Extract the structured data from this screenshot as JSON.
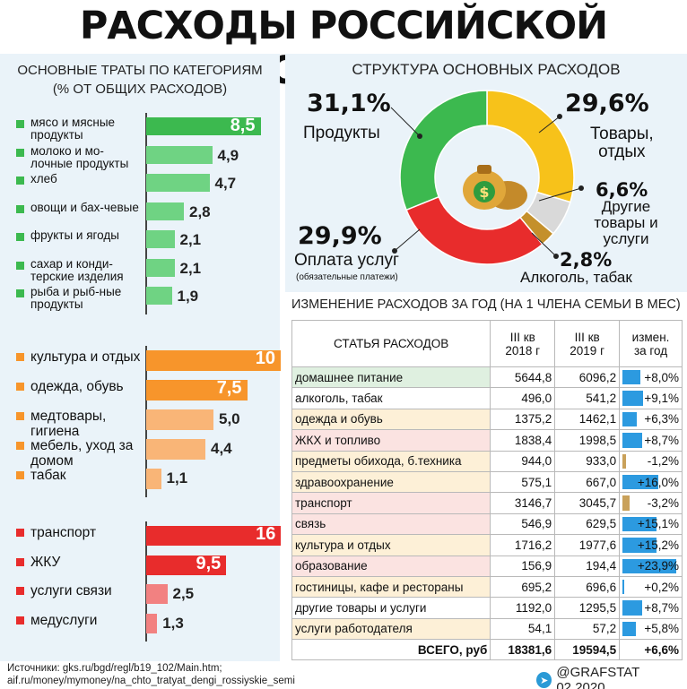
{
  "title": "РАСХОДЫ РОССИЙСКОЙ СЕМЬИ",
  "left": {
    "heading_line1": "ОСНОВНЫЕ ТРАТЫ ПО КАТЕГОРИЯМ",
    "heading_line2": "(% ОТ ОБЩИХ РАСХОДОВ)"
  },
  "pie": {
    "heading": "СТРУКТУРА ОСНОВНЫХ РАСХОДОВ",
    "prod_pct": "31,1%",
    "prod_lbl": "Продукты",
    "goods_pct": "29,6%",
    "goods_lbl1": "Товары,",
    "goods_lbl2": "отдых",
    "other_pct": "6,6%",
    "other_lbl1": "Другие",
    "other_lbl2": "товары и",
    "other_lbl3": "услуги",
    "alc_pct": "2,8%",
    "alc_lbl": "Алкоголь, табак",
    "serv_pct": "29,9%",
    "serv_lbl": "Оплата услуг",
    "serv_note": "(обязательные платежи)"
  },
  "table": {
    "heading": "ИЗМЕНЕНИЕ РАСХОДОВ ЗА ГОД (НА 1 ЧЛЕНА СЕМЬИ В МЕС)",
    "h_item": "СТАТЬЯ РАСХОДОВ",
    "h_q1_a": "III кв",
    "h_q1_b": "2018 г",
    "h_q2_a": "III кв",
    "h_q2_b": "2019 г",
    "h_chg_a": "измен.",
    "h_chg_b": "за год",
    "total_label": "ВСЕГО, руб",
    "total_2018": "18381,6",
    "total_2019": "19594,5",
    "total_change": "+6,6%"
  },
  "footer": {
    "source1": "Источники: gks.ru/bgd/regl/b19_102/Main.htm;",
    "source2": "aif.ru/money/mymoney/na_chto_tratyat_dengi_rossiyskie_semi",
    "brand": "@GRAFSTAT 02.2020"
  },
  "colors": {
    "green": "#3cb94f",
    "green_light": "#6fd383",
    "orange": "#f7952b",
    "orange_light": "#f9b577",
    "red": "#e82c2c",
    "red_light": "#f28181",
    "yellow": "#f7c21a",
    "grey": "#d9d9d9",
    "brown": "#c4902b",
    "bar_blue": "#2c9ae0",
    "bar_brown": "#c9a15a"
  },
  "chart_data": [
    {
      "type": "bar",
      "orientation": "horizontal",
      "title": "ОСНОВНЫЕ ТРАТЫ ПО КАТЕГОРИЯМ (% ОТ ОБЩИХ РАСХОДОВ)",
      "groups": [
        {
          "color": "green",
          "items": [
            {
              "label": "мясо и мясные продукты",
              "value": 8.5,
              "text": "8,5"
            },
            {
              "label": "молоко и мо-лочные продукты",
              "value": 4.9,
              "text": "4,9"
            },
            {
              "label": "хлеб",
              "value": 4.7,
              "text": "4,7"
            },
            {
              "label": "овощи и бах-чевые",
              "value": 2.8,
              "text": "2,8"
            },
            {
              "label": "фрукты и ягоды",
              "value": 2.1,
              "text": "2,1"
            },
            {
              "label": "сахар и конди-терские изделия",
              "value": 2.1,
              "text": "2,1"
            },
            {
              "label": "рыба и рыб-ные продукты",
              "value": 1.9,
              "text": "1,9"
            }
          ]
        },
        {
          "color": "orange",
          "items": [
            {
              "label": "культура и отдых",
              "value": 10,
              "text": "10"
            },
            {
              "label": "одежда, обувь",
              "value": 7.5,
              "text": "7,5"
            },
            {
              "label": "медтовары, гигиена",
              "value": 5.0,
              "text": "5,0"
            },
            {
              "label": "мебель, уход за домом",
              "value": 4.4,
              "text": "4,4"
            },
            {
              "label": "табак",
              "value": 1.1,
              "text": "1,1"
            }
          ]
        },
        {
          "color": "red",
          "items": [
            {
              "label": "транспорт",
              "value": 16,
              "text": "16"
            },
            {
              "label": "ЖКУ",
              "value": 9.5,
              "text": "9,5"
            },
            {
              "label": "услуги связи",
              "value": 2.5,
              "text": "2,5"
            },
            {
              "label": "медуслуги",
              "value": 1.3,
              "text": "1,3"
            }
          ]
        }
      ]
    },
    {
      "type": "pie",
      "title": "СТРУКТУРА ОСНОВНЫХ РАСХОДОВ",
      "slices": [
        {
          "label": "Товары, отдых",
          "value": 29.6,
          "color": "yellow"
        },
        {
          "label": "Другие товары и услуги",
          "value": 6.6,
          "color": "grey"
        },
        {
          "label": "Алкоголь, табак",
          "value": 2.8,
          "color": "brown"
        },
        {
          "label": "Оплата услуг",
          "value": 29.9,
          "color": "red"
        },
        {
          "label": "Продукты",
          "value": 31.1,
          "color": "green"
        }
      ]
    },
    {
      "type": "table",
      "title": "ИЗМЕНЕНИЕ РАСХОДОВ ЗА ГОД (НА 1 ЧЛЕНА СЕМЬИ В МЕС)",
      "columns": [
        "СТАТЬЯ РАСХОДОВ",
        "III кв 2018 г",
        "III кв 2019 г",
        "измен. за год"
      ],
      "rows": [
        {
          "item": "домашнее питание",
          "y2018": "5644,8",
          "y2019": "6096,2",
          "change": "+8,0%",
          "pct": 8.0,
          "bg": "#dff0e0"
        },
        {
          "item": "алкоголь, табак",
          "y2018": "496,0",
          "y2019": "541,2",
          "change": "+9,1%",
          "pct": 9.1,
          "bg": "#ffffff"
        },
        {
          "item": "одежда и обувь",
          "y2018": "1375,2",
          "y2019": "1462,1",
          "change": "+6,3%",
          "pct": 6.3,
          "bg": "#fdf0d7"
        },
        {
          "item": "ЖКХ и топливо",
          "y2018": "1838,4",
          "y2019": "1998,5",
          "change": "+8,7%",
          "pct": 8.7,
          "bg": "#fbe3e1"
        },
        {
          "item": "предметы обихода, б.техника",
          "y2018": "944,0",
          "y2019": "933,0",
          "change": "-1,2%",
          "pct": -1.2,
          "bg": "#fdf0d7"
        },
        {
          "item": "здравоохранение",
          "y2018": "575,1",
          "y2019": "667,0",
          "change": "+16,0%",
          "pct": 16.0,
          "bg": "#fdf0d7"
        },
        {
          "item": "транспорт",
          "y2018": "3146,7",
          "y2019": "3045,7",
          "change": "-3,2%",
          "pct": -3.2,
          "bg": "#fbe3e1"
        },
        {
          "item": "связь",
          "y2018": "546,9",
          "y2019": "629,5",
          "change": "+15,1%",
          "pct": 15.1,
          "bg": "#fbe3e1"
        },
        {
          "item": "культура и отдых",
          "y2018": "1716,2",
          "y2019": "1977,6",
          "change": "+15,2%",
          "pct": 15.2,
          "bg": "#fdf0d7"
        },
        {
          "item": "образование",
          "y2018": "156,9",
          "y2019": "194,4",
          "change": "+23,9%",
          "pct": 23.9,
          "bg": "#fbe3e1"
        },
        {
          "item": "гостиницы, кафе и рестораны",
          "y2018": "695,2",
          "y2019": "696,6",
          "change": "+0,2%",
          "pct": 0.2,
          "bg": "#fdf0d7"
        },
        {
          "item": "другие товары и услуги",
          "y2018": "1192,0",
          "y2019": "1295,5",
          "change": "+8,7%",
          "pct": 8.7,
          "bg": "#ffffff"
        },
        {
          "item": "услуги работодателя",
          "y2018": "54,1",
          "y2019": "57,2",
          "change": "+5,8%",
          "pct": 5.8,
          "bg": "#fdf0d7"
        }
      ]
    }
  ]
}
